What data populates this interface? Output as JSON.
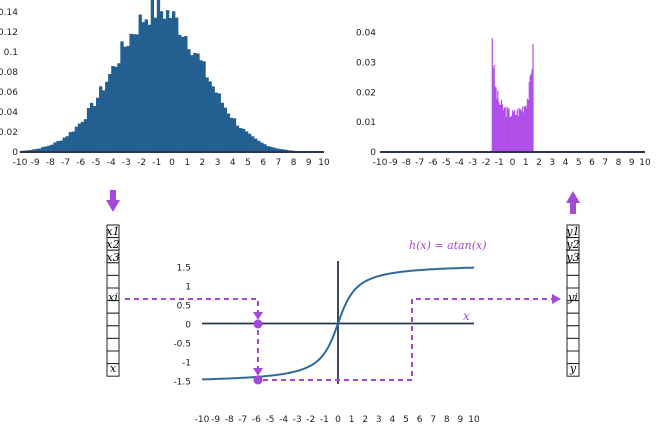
{
  "colors": {
    "hist_in": "#235f91",
    "hist_out": "#b04eea",
    "accent": "#a44ad8",
    "curve": "#2f6a9b",
    "axis": "#26384a"
  },
  "left_hist": {
    "x_ticks": [
      "-10",
      "-9",
      "-8",
      "-7",
      "-6",
      "-5",
      "-4",
      "-3",
      "-2",
      "-1",
      "0",
      "1",
      "2",
      "3",
      "4",
      "5",
      "6",
      "7",
      "8",
      "9",
      "10"
    ],
    "y_ticks": [
      "0",
      "0.02",
      "0.04",
      "0.06",
      "0.08",
      "0.1",
      "0.12",
      "0.14"
    ]
  },
  "right_hist": {
    "x_ticks": [
      "-10",
      "-9",
      "-8",
      "-7",
      "-6",
      "-5",
      "-4",
      "-3",
      "-2",
      "-1",
      "0",
      "1",
      "2",
      "3",
      "4",
      "5",
      "6",
      "7",
      "8",
      "9",
      "10"
    ],
    "y_ticks": [
      "0",
      "0.01",
      "0.02",
      "0.03",
      "0.04"
    ]
  },
  "atan_plot": {
    "function_label": "h(x) = atan(x)",
    "x_var": "x",
    "x_ticks": [
      "-10",
      "-9",
      "-8",
      "-7",
      "-6",
      "-5",
      "-4",
      "-3",
      "-2",
      "-1",
      "0",
      "1",
      "2",
      "3",
      "4",
      "5",
      "6",
      "7",
      "8",
      "9",
      "10"
    ],
    "y_ticks": [
      "1.5",
      "1",
      "0.5",
      "0",
      "-0.5",
      "-1",
      "-1.5"
    ]
  },
  "input_vector": {
    "labels": [
      "x1",
      "x2",
      "x3",
      "xi",
      "x"
    ]
  },
  "output_vector": {
    "labels": [
      "y1",
      "y2",
      "y3",
      "yi",
      "y"
    ]
  }
}
